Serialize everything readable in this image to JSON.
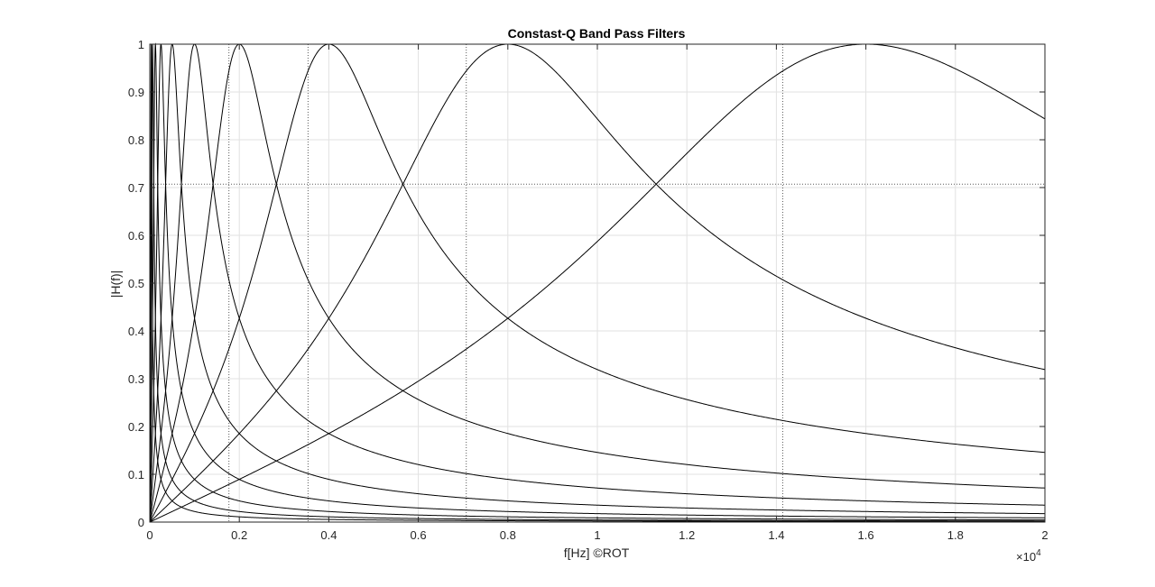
{
  "chart_data": {
    "type": "line",
    "title": "Constast-Q Band Pass Filters",
    "xlabel": "f[Hz] ©ROT",
    "ylabel": "|H(f)|",
    "x_exponent_label": "×10",
    "x_exponent_power": "4",
    "xlim": [
      0,
      20000
    ],
    "ylim": [
      0,
      1
    ],
    "xticks": [
      0,
      2000,
      4000,
      6000,
      8000,
      10000,
      12000,
      14000,
      16000,
      18000,
      20000
    ],
    "xtick_labels": [
      "0",
      "0.2",
      "0.4",
      "0.6",
      "0.8",
      "1",
      "1.2",
      "1.4",
      "1.6",
      "1.8",
      "2"
    ],
    "yticks": [
      0,
      0.1,
      0.2,
      0.3,
      0.4,
      0.5,
      0.6,
      0.7,
      0.8,
      0.9,
      1
    ],
    "ytick_labels": [
      "0",
      "0.1",
      "0.2",
      "0.3",
      "0.4",
      "0.5",
      "0.6",
      "0.7",
      "0.8",
      "0.9",
      "1"
    ],
    "grid": true,
    "filter_Q": 1.414,
    "series_center_freqs": [
      31.25,
      62.5,
      125,
      250,
      500,
      1000,
      2000,
      4000,
      8000,
      16000
    ],
    "cutoff_marker_freqs": [
      1768,
      3536,
      7071,
      14142
    ],
    "reference_level": 0.7071,
    "line_color": "#000000",
    "grid_color": "#e2e2e2",
    "marker_line_color": "#5a5a5a"
  }
}
